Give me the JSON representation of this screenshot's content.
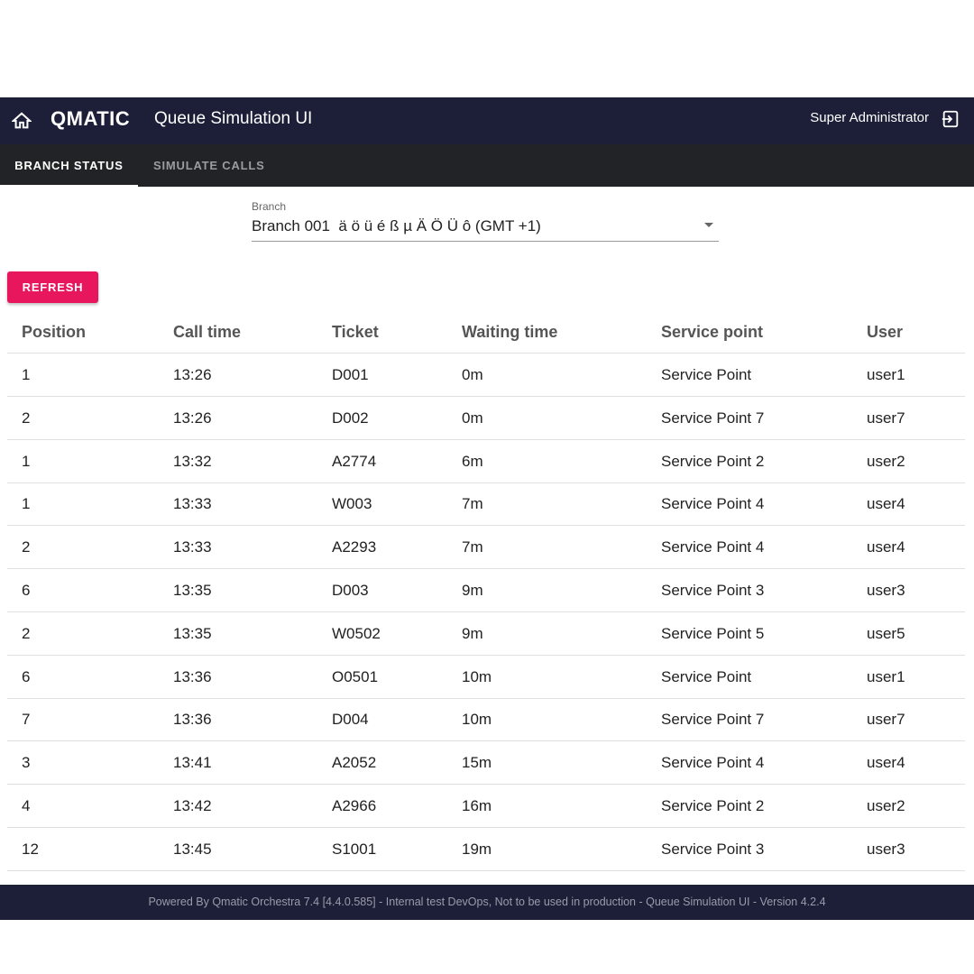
{
  "header": {
    "logo": "QMATIC",
    "title": "Queue Simulation UI",
    "user": "Super Administrator"
  },
  "tabs": [
    "BRANCH STATUS",
    "SIMULATE CALLS"
  ],
  "branch": {
    "label": "Branch",
    "value": "Branch 001  ä ö ü é ß µ Ä Ö Ü ô (GMT +1)"
  },
  "refresh": "REFRESH",
  "table": {
    "columns": [
      "Position",
      "Call time",
      "Ticket",
      "Waiting time",
      "Service point",
      "User"
    ],
    "rows": [
      [
        "1",
        "13:26",
        "D001",
        "0m",
        "Service Point",
        "user1"
      ],
      [
        "2",
        "13:26",
        "D002",
        "0m",
        "Service Point 7",
        "user7"
      ],
      [
        "1",
        "13:32",
        "A2774",
        "6m",
        "Service Point 2",
        "user2"
      ],
      [
        "1",
        "13:33",
        "W003",
        "7m",
        "Service Point 4",
        "user4"
      ],
      [
        "2",
        "13:33",
        "A2293",
        "7m",
        "Service Point 4",
        "user4"
      ],
      [
        "6",
        "13:35",
        "D003",
        "9m",
        "Service Point 3",
        "user3"
      ],
      [
        "2",
        "13:35",
        "W0502",
        "9m",
        "Service Point 5",
        "user5"
      ],
      [
        "6",
        "13:36",
        "O0501",
        "10m",
        "Service Point",
        "user1"
      ],
      [
        "7",
        "13:36",
        "D004",
        "10m",
        "Service Point 7",
        "user7"
      ],
      [
        "3",
        "13:41",
        "A2052",
        "15m",
        "Service Point 4",
        "user4"
      ],
      [
        "4",
        "13:42",
        "A2966",
        "16m",
        "Service Point 2",
        "user2"
      ],
      [
        "12",
        "13:45",
        "S1001",
        "19m",
        "Service Point 3",
        "user3"
      ]
    ]
  },
  "footer": "Powered By Qmatic Orchestra 7.4 [4.4.0.585] - Internal test DevOps, Not to be used in production - Queue Simulation UI - Version 4.2.4"
}
